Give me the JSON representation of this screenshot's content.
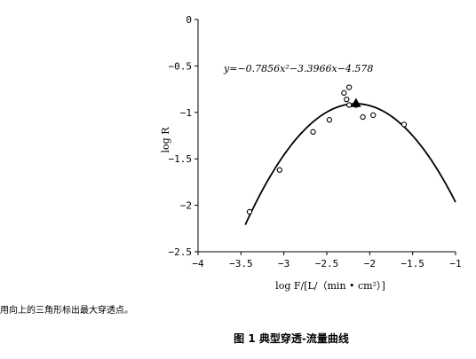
{
  "chart_data": {
    "type": "scatter",
    "xlabel": "log F/[L/（min • cm²）]",
    "ylabel": "log R",
    "xlim": [
      -4,
      -1
    ],
    "ylim": [
      -2.5,
      0
    ],
    "x_ticks": [
      "−4",
      "−3.5",
      "−3",
      "−2.5",
      "−2",
      "−1.5",
      "−1"
    ],
    "y_ticks": [
      "0",
      "−0.5",
      "−1",
      "−1.5",
      "−2",
      "−2.5"
    ],
    "x_tick_values": [
      -4,
      -3.5,
      -3,
      -2.5,
      -2,
      -1.5,
      -1
    ],
    "y_tick_values": [
      0,
      -0.5,
      -1,
      -1.5,
      -2,
      -2.5
    ],
    "grid": false,
    "equation_label": "y=−0.7856x²−3.3966x−4.578",
    "fit": {
      "a": -0.7856,
      "b": -3.3966,
      "c": -4.578,
      "x_range": [
        -3.45,
        -1
      ]
    },
    "points": [
      {
        "x": -3.4,
        "y": -2.07
      },
      {
        "x": -3.05,
        "y": -1.62
      },
      {
        "x": -2.66,
        "y": -1.21
      },
      {
        "x": -2.47,
        "y": -1.08
      },
      {
        "x": -2.3,
        "y": -0.79
      },
      {
        "x": -2.27,
        "y": -0.86
      },
      {
        "x": -2.24,
        "y": -0.73
      },
      {
        "x": -2.24,
        "y": -0.92
      },
      {
        "x": -2.16,
        "y": -0.92
      },
      {
        "x": -2.08,
        "y": -1.05
      },
      {
        "x": -1.96,
        "y": -1.03
      },
      {
        "x": -1.6,
        "y": -1.13
      }
    ],
    "max_point": {
      "x": -2.16,
      "y": -0.9
    }
  },
  "note": "用向上的三角形标出最大穿透点。",
  "caption": "图 1  典型穿透-流量曲线"
}
